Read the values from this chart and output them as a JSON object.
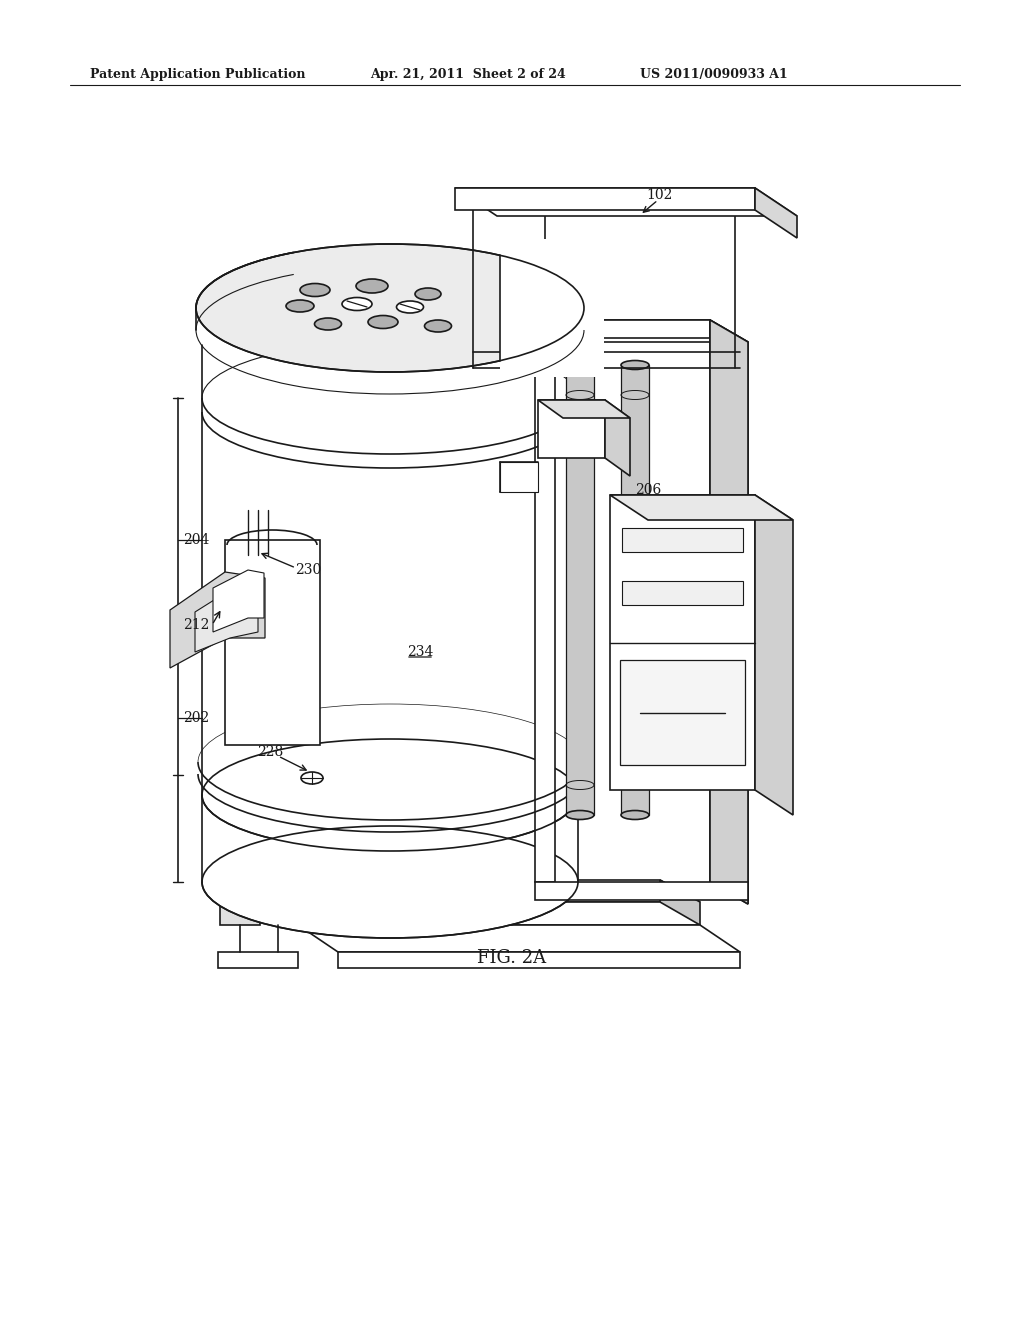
{
  "bg_color": "#ffffff",
  "line_color": "#1a1a1a",
  "line_width": 1.2,
  "header_text": "Patent Application Publication",
  "header_date": "Apr. 21, 2011  Sheet 2 of 24",
  "header_patent": "US 2011/0090933 A1",
  "fig_label": "FIG. 2A",
  "labels_info": [
    [
      660,
      195,
      "102"
    ],
    [
      196,
      540,
      "204"
    ],
    [
      196,
      625,
      "212"
    ],
    [
      196,
      718,
      "202"
    ],
    [
      308,
      570,
      "230"
    ],
    [
      420,
      652,
      "234"
    ],
    [
      270,
      752,
      "228"
    ],
    [
      648,
      490,
      "206"
    ]
  ]
}
